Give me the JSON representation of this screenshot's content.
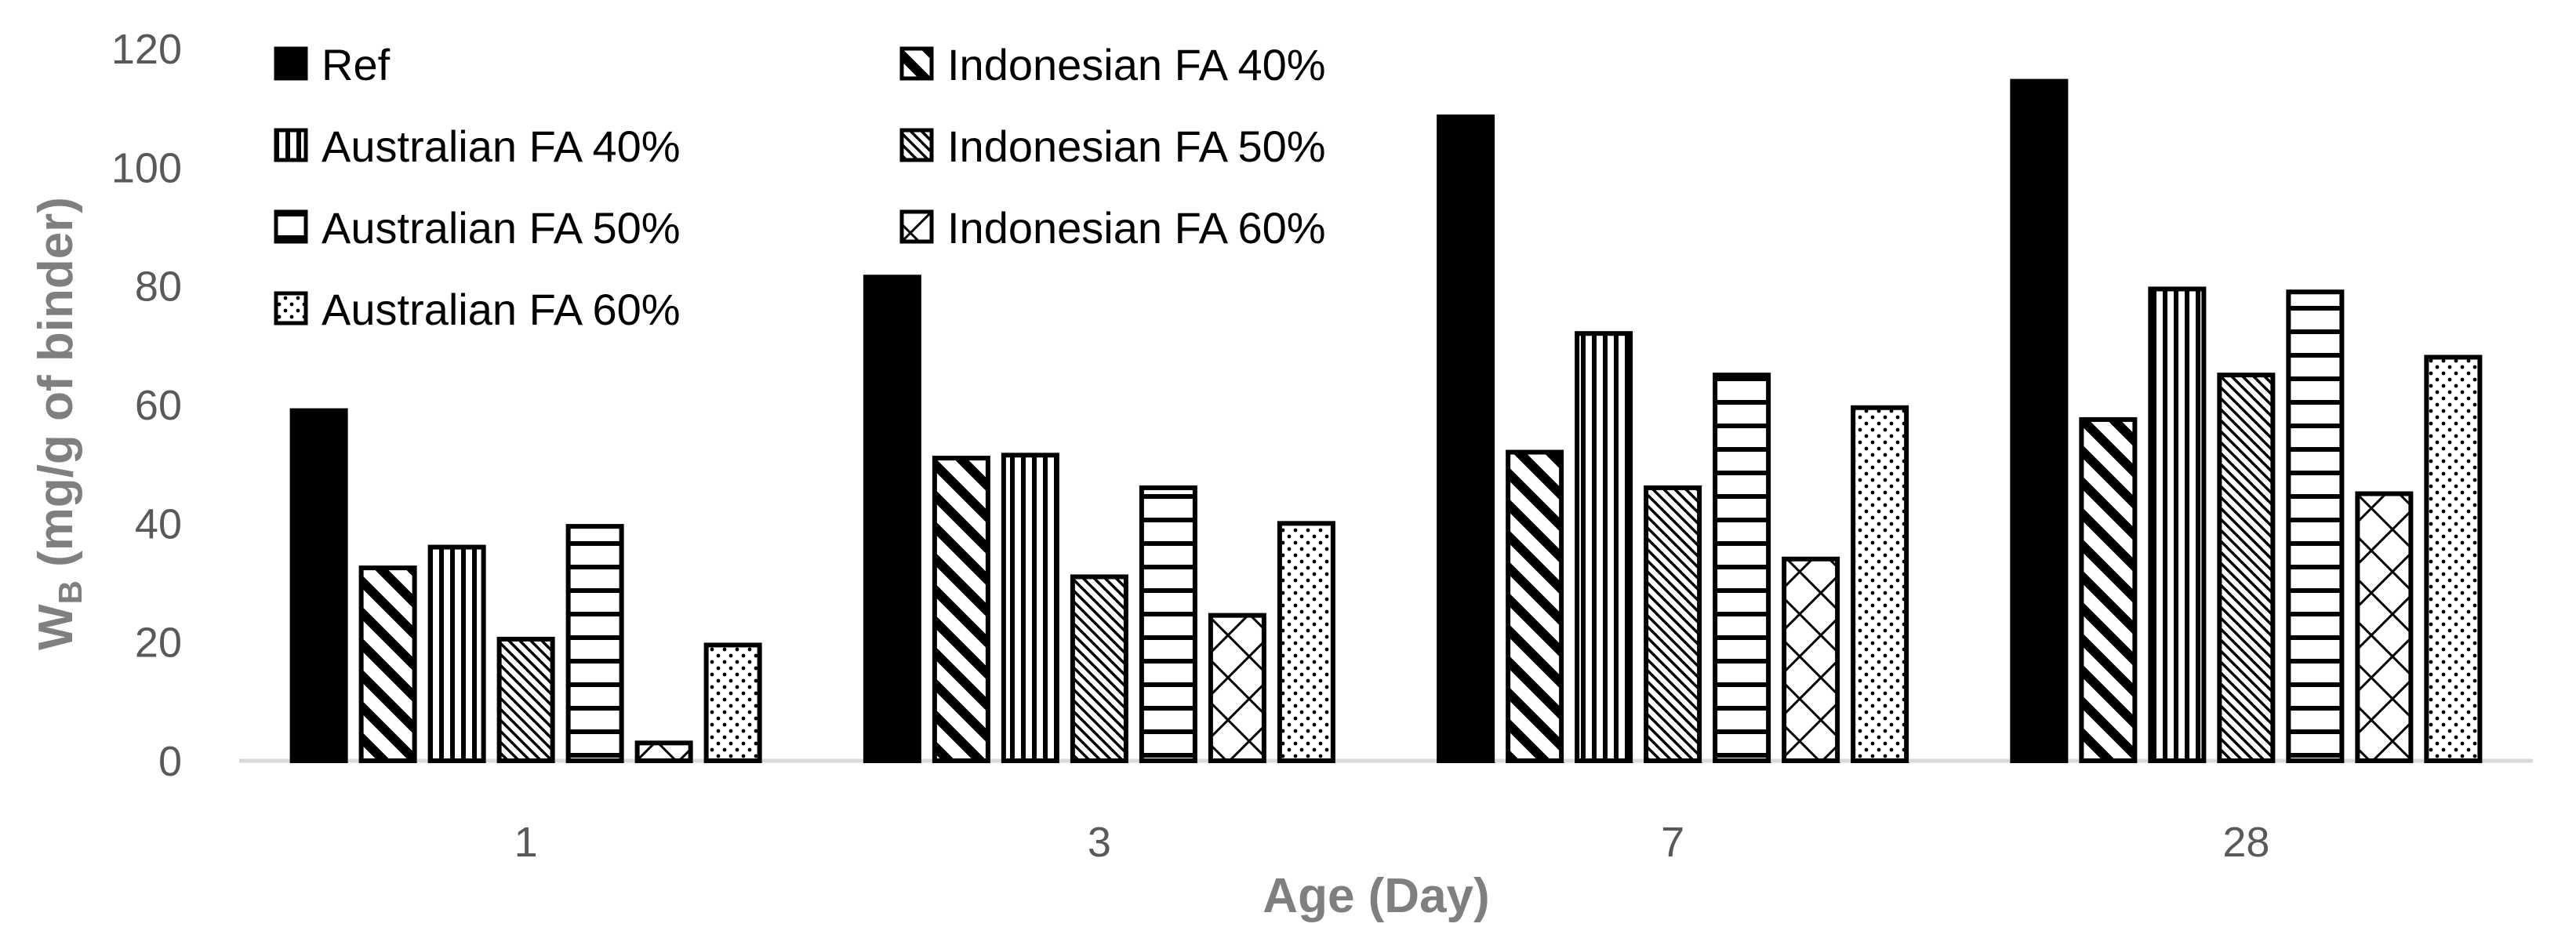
{
  "chart_data": {
    "type": "bar",
    "title": "",
    "xlabel": "Age (Day)",
    "ylabel_main": "W",
    "ylabel_sub": "B",
    "ylabel_rest": " (mg/g of binder)",
    "ylim": [
      0,
      120
    ],
    "yticks": [
      0,
      20,
      40,
      60,
      80,
      100,
      120
    ],
    "categories": [
      "1",
      "3",
      "7",
      "28"
    ],
    "legend_position": "top-left",
    "series": [
      {
        "name": "Ref",
        "pattern": "solid",
        "values": [
          59,
          81.5,
          108.5,
          114.5
        ]
      },
      {
        "name": "Indonesian FA 40%",
        "pattern": "diag-right",
        "values": [
          32.5,
          51,
          52,
          57.5
        ]
      },
      {
        "name": "Australian FA 40%",
        "pattern": "vertical",
        "values": [
          36,
          51.5,
          72,
          79.5
        ]
      },
      {
        "name": "Indonesian FA 50%",
        "pattern": "diag-thin",
        "values": [
          20.5,
          31,
          46,
          65
        ]
      },
      {
        "name": "Australian FA 50%",
        "pattern": "horizontal",
        "values": [
          39.5,
          46,
          65,
          79
        ]
      },
      {
        "name": "Indonesian FA 60%",
        "pattern": "cross",
        "values": [
          3,
          24.5,
          34,
          45
        ]
      },
      {
        "name": "Australian FA 60%",
        "pattern": "dots",
        "values": [
          19.5,
          40,
          59.5,
          68
        ]
      }
    ],
    "legend_order": [
      0,
      2,
      4,
      6,
      1,
      3,
      5
    ],
    "colors": {
      "bar_fill": "#000000",
      "bar_stroke": "#000000",
      "axis": "#d9d9d9",
      "text": "#595959",
      "title_text": "#7f7f7f"
    }
  }
}
